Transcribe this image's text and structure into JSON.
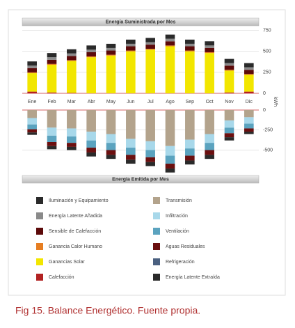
{
  "chart_data": [
    {
      "type": "bar",
      "title": "Energía Suministrada por Mes",
      "y_label": "kWh",
      "categories": [
        "Ene",
        "Feb",
        "Mar",
        "Abr",
        "May",
        "Jun",
        "Jul",
        "Ago",
        "Sep",
        "Oct",
        "Nov",
        "Dic"
      ],
      "ylim": [
        0,
        780
      ],
      "yticks": [
        0,
        250,
        500,
        750
      ],
      "grid": true,
      "series": [
        {
          "name": "Calefacción",
          "color": "#b22222",
          "values": [
            20,
            10,
            5,
            0,
            0,
            0,
            0,
            0,
            0,
            0,
            10,
            20
          ]
        },
        {
          "name": "Ganancias Solar",
          "color": "#f2e600",
          "values": [
            220,
            330,
            380,
            430,
            450,
            500,
            520,
            560,
            500,
            480,
            260,
            200
          ]
        },
        {
          "name": "Ganancia Calor Humano",
          "color": "#e67e22",
          "values": [
            10,
            10,
            10,
            10,
            10,
            10,
            10,
            10,
            10,
            10,
            10,
            10
          ]
        },
        {
          "name": "Sensible de Calefacción",
          "color": "#5c0a0a",
          "values": [
            50,
            50,
            50,
            50,
            50,
            50,
            50,
            50,
            50,
            50,
            50,
            50
          ]
        },
        {
          "name": "Energía Latente Añadida",
          "color": "#8a8a8a",
          "values": [
            30,
            30,
            30,
            30,
            30,
            30,
            30,
            30,
            30,
            30,
            30,
            30
          ]
        },
        {
          "name": "Iluminación y Equipamiento",
          "color": "#2a2a2a",
          "values": [
            50,
            50,
            50,
            50,
            50,
            50,
            50,
            50,
            50,
            50,
            50,
            50
          ]
        }
      ]
    },
    {
      "type": "bar",
      "title": "Energía Emitida por Mes",
      "ylim": [
        -800,
        0
      ],
      "yticks": [
        0,
        -250,
        -500
      ],
      "grid": true,
      "series": [
        {
          "name": "Transmisión",
          "color": "#b3a38c",
          "values": [
            -100,
            -220,
            -230,
            -270,
            -300,
            -360,
            -390,
            -450,
            -370,
            -300,
            -130,
            -90
          ]
        },
        {
          "name": "Infiltración",
          "color": "#a8d8ea",
          "values": [
            -80,
            -100,
            -100,
            -110,
            -110,
            -110,
            -110,
            -120,
            -110,
            -110,
            -90,
            -80
          ]
        },
        {
          "name": "Ventilación",
          "color": "#5ba3bf",
          "values": [
            -60,
            -80,
            -80,
            -90,
            -90,
            -90,
            -90,
            -100,
            -90,
            -90,
            -70,
            -60
          ]
        },
        {
          "name": "Aguas Residuales",
          "color": "#6b0f0f",
          "values": [
            -40,
            -50,
            -50,
            -60,
            -60,
            -60,
            -60,
            -60,
            -60,
            -60,
            -50,
            -40
          ]
        },
        {
          "name": "Refrigeración",
          "color": "#4a6080",
          "values": [
            0,
            0,
            0,
            0,
            0,
            0,
            0,
            0,
            0,
            0,
            0,
            0
          ]
        },
        {
          "name": "Energía Latente Extraída",
          "color": "#2a2a2a",
          "values": [
            -30,
            -40,
            -40,
            -50,
            -50,
            -50,
            -50,
            -50,
            -50,
            -50,
            -40,
            -30
          ]
        }
      ]
    }
  ],
  "caption": "Fig 15. Balance Energético. Fuente propia."
}
